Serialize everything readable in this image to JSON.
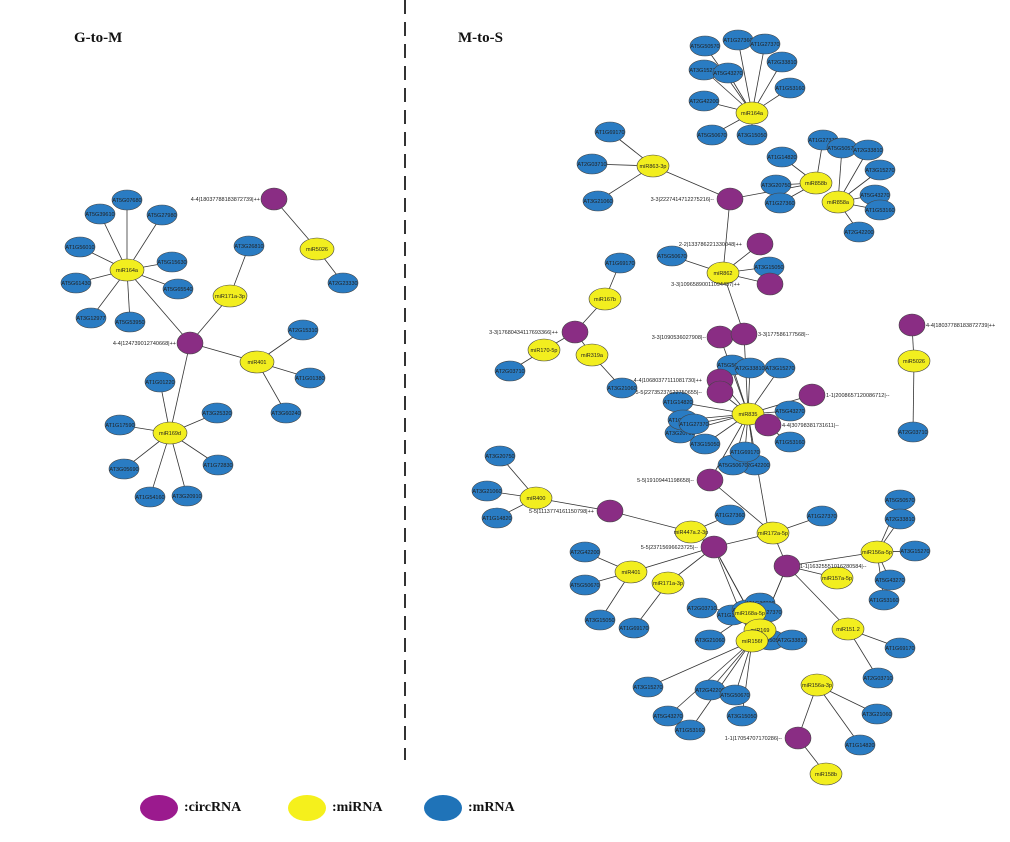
{
  "panels": {
    "left_title": "G-to-M",
    "right_title": "M-to-S"
  },
  "legend": [
    {
      "label": ":circRNA",
      "color": "#9b1a8e"
    },
    {
      "label": ":miRNA",
      "color": "#f5f01c"
    },
    {
      "label": ":mRNA",
      "color": "#1f73b8"
    }
  ],
  "colors": {
    "circRNA": "#9b1a8e",
    "miRNA": "#f5f01c",
    "mRNA": "#1f73b8",
    "circRNA_fill": "#8a2d84",
    "miRNA_fill": "#f2ee1f",
    "mRNA_fill": "#2a7cc3",
    "edge": "#333333",
    "divider": "#333333"
  },
  "networks": {
    "G-to-M": {
      "circRNA": [
        "4-4|124739012740668|++",
        "4-4|18037788183872739|++"
      ],
      "miRNA": [
        "miR164a",
        "miR171a-3p",
        "miR401",
        "miR169d",
        "miR5026"
      ],
      "mRNA": [
        "AT5G39610",
        "AT5G07680",
        "AT5G27980",
        "AT1G56010",
        "AT5G15630",
        "AT5G61430",
        "AT3G12977",
        "AT5G53950",
        "AT5G65540",
        "AT3G26810",
        "AT2G15310",
        "AT1G01380",
        "AT3G60240",
        "AT1G01220",
        "AT3G25320",
        "AT1G17590",
        "AT1G72830",
        "AT3G05690",
        "AT1G54160",
        "AT3G20910",
        "AT2G23330",
        "AT5G06510",
        "AT3G18430"
      ]
    },
    "M-to-S": {
      "circRNA": [
        "3-3|2227414712275216|--",
        "2-2|133786221330048|++",
        "3-3|10965890011094437|++",
        "3-3|1090536027908|--",
        "3-3|17680434117693366|++",
        "4-4|18037788183872739|++",
        "4-4|10680377111081730|++",
        "5-5|22735237622750655|--",
        "1-1|2008657120086712|--",
        "4-4|30798381731611|--",
        "5-5|19109441198658|--",
        "5-5|1113774161150798|++",
        "5-5|23715696623725|--",
        "1-1|16325551016280584|--",
        "1-1|17054707170286|--",
        "3-3|177586177568|--"
      ],
      "miRNA": [
        "miR164a",
        "miR863-3p",
        "miR858b",
        "miR858a",
        "miR862",
        "miR167b",
        "miR170-5p",
        "miR319a",
        "miR835",
        "miR5026",
        "miR400",
        "miR447a.2-3p",
        "miR172a-5p",
        "miR156a-5p",
        "miR157a-5p",
        "miR401",
        "miR171a-3p",
        "miR168a-5p",
        "miR169",
        "miR156f",
        "miR151.2",
        "miR156a-3p",
        "miR158b"
      ],
      "mRNA": [
        "AT1G27360",
        "AT1G27370",
        "AT5G50570",
        "AT2G33810",
        "AT3G15270",
        "AT5G43270",
        "AT1G53160",
        "AT2G42200",
        "AT5G50670",
        "AT3G15050",
        "AT1G69170",
        "AT2G03710",
        "AT3G21060",
        "AT1G14820",
        "AT3G20750"
      ]
    }
  }
}
